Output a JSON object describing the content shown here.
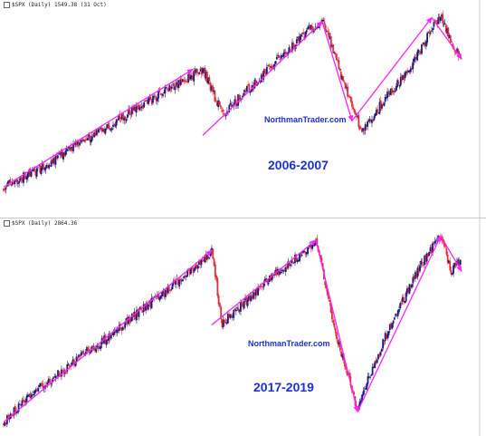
{
  "panels": [
    {
      "ticker": "$SPX (Daily) 1549.38 (31 Oct)",
      "watermark": "NorthmanTrader.com",
      "period": "2006-2007"
    },
    {
      "ticker": "$SPX (Daily) 2864.36",
      "watermark": "NorthmanTrader.com",
      "period": "2017-2019"
    }
  ],
  "colors": {
    "trend_arrow": "#ff22ff",
    "candle_up": "#1a1a7a",
    "candle_down": "#e0303a",
    "text_blue": "#1f2fd6"
  },
  "chart_data": [
    {
      "type": "candlestick",
      "title": "$SPX (Daily) 1549.38 (31 Oct)",
      "period": "2006-2007",
      "series": [
        {
          "values": [
            0.87,
            0.85,
            0.82,
            0.8,
            0.77,
            0.74,
            0.71,
            0.68,
            0.65,
            0.62,
            0.6,
            0.56,
            0.53,
            0.5,
            0.47,
            0.45,
            0.41,
            0.39,
            0.36,
            0.33,
            0.3,
            0.41,
            0.52,
            0.47,
            0.42,
            0.38,
            0.33,
            0.28,
            0.23,
            0.19,
            0.14,
            0.1,
            0.07,
            0.19,
            0.35,
            0.48,
            0.6,
            0.55,
            0.46,
            0.4,
            0.35,
            0.28,
            0.2,
            0.1,
            0.05,
            0.18,
            0.25
          ]
        }
      ],
      "annotations": [
        "NorthmanTrader.com",
        "2006-2007"
      ]
    },
    {
      "type": "candlestick",
      "title": "$SPX (Daily) 2864.36",
      "period": "2017-2019",
      "series": [
        {
          "values": [
            0.95,
            0.9,
            0.84,
            0.8,
            0.77,
            0.73,
            0.69,
            0.65,
            0.61,
            0.58,
            0.54,
            0.5,
            0.46,
            0.42,
            0.38,
            0.34,
            0.3,
            0.26,
            0.22,
            0.17,
            0.12,
            0.48,
            0.42,
            0.38,
            0.33,
            0.28,
            0.24,
            0.2,
            0.16,
            0.12,
            0.07,
            0.3,
            0.55,
            0.7,
            0.9,
            0.75,
            0.62,
            0.5,
            0.4,
            0.3,
            0.2,
            0.12,
            0.05,
            0.22,
            0.16
          ]
        }
      ],
      "annotations": [
        "NorthmanTrader.com",
        "2017-2019"
      ]
    }
  ]
}
